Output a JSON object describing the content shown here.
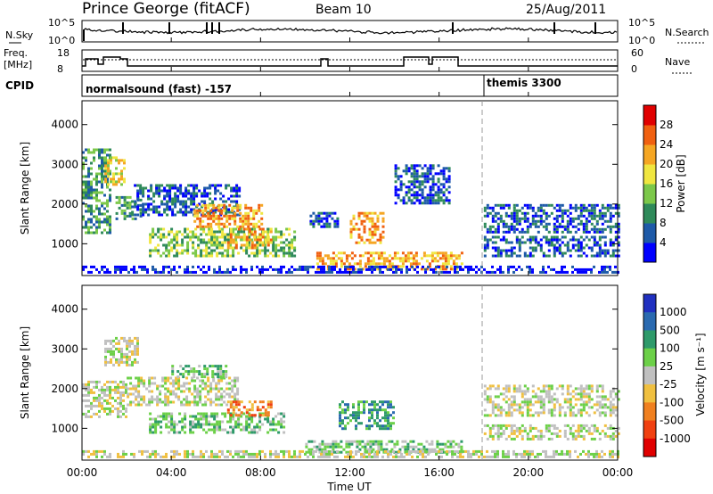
{
  "header": {
    "title": "Prince George (fitACF)",
    "beam": "Beam 10",
    "date": "25/Aug/2011"
  },
  "strips": {
    "nsky_label": "N.Sky",
    "nsky_ticks": [
      "10^5",
      "10^0"
    ],
    "nsearch_label": "N.Search",
    "nsearch_ticks": [
      "10^5",
      "10^0"
    ],
    "freq_label_1": "Freq.",
    "freq_label_2": "[MHz]",
    "freq_ticks": [
      "18",
      "8"
    ],
    "nave_label": "Nave",
    "nave_ticks": [
      "60",
      "0"
    ],
    "cpid_label": "CPID",
    "cpid_1": "normalsound (fast) -157",
    "cpid_2": "themis 3300"
  },
  "panels": {
    "ylabel": "Slant Range [km]",
    "yticks": [
      "1000",
      "2000",
      "3000",
      "4000"
    ],
    "xticks": [
      "00:00",
      "04:00",
      "08:00",
      "12:00",
      "16:00",
      "20:00",
      "00:00"
    ],
    "xlabel": "Time UT"
  },
  "power_bar": {
    "label": "Power [dB]",
    "ticks": [
      "4",
      "8",
      "12",
      "16",
      "20",
      "24",
      "28"
    ],
    "colors": [
      "#0000ff",
      "#1e5aa8",
      "#2f8a5a",
      "#7cc84a",
      "#f0e640",
      "#f5a623",
      "#f06010",
      "#e00000"
    ]
  },
  "velocity_bar": {
    "label": "Velocity [m s⁻¹]",
    "ticks": [
      "1000",
      "500",
      "100",
      "25",
      "-25",
      "-100",
      "-500",
      "-1000"
    ],
    "colors": [
      "#2030c0",
      "#2a6ab0",
      "#2e9a6a",
      "#6cd048",
      "#c0c0c0",
      "#f0c040",
      "#f08020",
      "#f04010",
      "#e00000"
    ]
  },
  "chart_data": {
    "type": "heatmap",
    "title": "Prince George (fitACF)",
    "xlabel": "Time UT",
    "ylabel": "Slant Range [km]",
    "xlim": [
      0,
      24
    ],
    "ylim": [
      200,
      4600
    ],
    "themis_start_hour": 18,
    "power_regions": [
      {
        "t": [
          0,
          1.2
        ],
        "r": [
          1300,
          3400
        ],
        "db": 12
      },
      {
        "t": [
          1.0,
          1.9
        ],
        "r": [
          2500,
          3200
        ],
        "db": 22
      },
      {
        "t": [
          1.5,
          2.6
        ],
        "r": [
          1600,
          2200
        ],
        "db": 12
      },
      {
        "t": [
          2.2,
          7.0
        ],
        "r": [
          1700,
          2500
        ],
        "db": 10
      },
      {
        "t": [
          5.0,
          8.0
        ],
        "r": [
          1400,
          2000
        ],
        "db": 26
      },
      {
        "t": [
          3.0,
          9.5
        ],
        "r": [
          700,
          1400
        ],
        "db": 18
      },
      {
        "t": [
          6.5,
          8.5
        ],
        "r": [
          900,
          1400
        ],
        "db": 26
      },
      {
        "t": [
          10.2,
          11.4
        ],
        "r": [
          1400,
          1800
        ],
        "db": 8
      },
      {
        "t": [
          12.0,
          13.5
        ],
        "r": [
          1000,
          1800
        ],
        "db": 26
      },
      {
        "t": [
          10.5,
          17.0
        ],
        "r": [
          350,
          800
        ],
        "db": 24
      },
      {
        "t": [
          14.0,
          16.5
        ],
        "r": [
          2000,
          3000
        ],
        "db": 8
      },
      {
        "t": [
          18.0,
          24.0
        ],
        "r": [
          1300,
          2000
        ],
        "db": 10
      },
      {
        "t": [
          18.0,
          24.0
        ],
        "r": [
          700,
          1200
        ],
        "db": 8
      },
      {
        "t": [
          0.0,
          24.0
        ],
        "r": [
          250,
          450
        ],
        "db": 6
      }
    ],
    "velocity_regions": [
      {
        "t": [
          0,
          2.0
        ],
        "r": [
          1300,
          2200
        ],
        "v": 0
      },
      {
        "t": [
          1.0,
          2.5
        ],
        "r": [
          2600,
          3300
        ],
        "v": 0
      },
      {
        "t": [
          2.0,
          7.0
        ],
        "r": [
          1600,
          2300
        ],
        "v": 0
      },
      {
        "t": [
          4.0,
          6.5
        ],
        "r": [
          2300,
          2600
        ],
        "v": 80
      },
      {
        "t": [
          3.0,
          9.0
        ],
        "r": [
          900,
          1400
        ],
        "v": 80
      },
      {
        "t": [
          6.5,
          8.5
        ],
        "r": [
          1300,
          1700
        ],
        "v": -100
      },
      {
        "t": [
          11.5,
          14.0
        ],
        "r": [
          1000,
          1700
        ],
        "v": 200
      },
      {
        "t": [
          10.0,
          17.0
        ],
        "r": [
          400,
          700
        ],
        "v": 60
      },
      {
        "t": [
          18.0,
          24.0
        ],
        "r": [
          1300,
          2100
        ],
        "v": 0
      },
      {
        "t": [
          18.0,
          24.0
        ],
        "r": [
          700,
          1100
        ],
        "v": 0
      },
      {
        "t": [
          0.0,
          24.0
        ],
        "r": [
          250,
          450
        ],
        "v": 0
      }
    ]
  }
}
